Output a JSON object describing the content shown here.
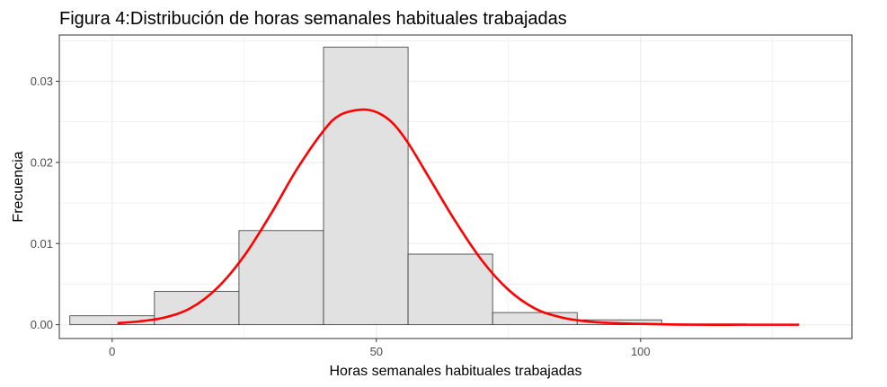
{
  "chart_data": {
    "type": "bar",
    "title": "Figura 4:Distribución de horas semanales habituales trabajadas",
    "xlabel": "Horas semanales habituales trabajadas",
    "ylabel": "Frecuencia",
    "xlim": [
      -10,
      140
    ],
    "ylim": [
      -0.0017,
      0.0357
    ],
    "x_ticks": [
      0,
      50,
      100
    ],
    "x_tick_labels": [
      "0",
      "50",
      "100"
    ],
    "y_ticks": [
      0,
      0.01,
      0.02,
      0.03
    ],
    "y_tick_labels": [
      "0.00",
      "0.01",
      "0.02",
      "0.03"
    ],
    "grid": true,
    "bins": [
      {
        "x0": -8,
        "x1": 8,
        "value": 0.0011
      },
      {
        "x0": 8,
        "x1": 24,
        "value": 0.0041
      },
      {
        "x0": 24,
        "x1": 40,
        "value": 0.0116
      },
      {
        "x0": 40,
        "x1": 56,
        "value": 0.0342
      },
      {
        "x0": 56,
        "x1": 72,
        "value": 0.0087
      },
      {
        "x0": 72,
        "x1": 88,
        "value": 0.0015
      },
      {
        "x0": 88,
        "x1": 104,
        "value": 0.0006
      },
      {
        "x0": 104,
        "x1": 120,
        "value": 0.0001
      },
      {
        "x0": 120,
        "x1": 137,
        "value": 0.0
      }
    ],
    "density_curve": {
      "color": "#ff0000",
      "x": [
        1,
        5,
        10,
        15,
        20,
        25,
        30,
        35,
        40,
        43,
        47,
        50,
        53,
        56,
        60,
        65,
        70,
        75,
        80,
        85,
        90,
        95,
        100,
        110,
        120,
        130
      ],
      "y": [
        0.0002,
        0.0004,
        0.0009,
        0.0021,
        0.0046,
        0.0085,
        0.0136,
        0.0192,
        0.0239,
        0.0258,
        0.0265,
        0.0262,
        0.0249,
        0.0224,
        0.0181,
        0.0127,
        0.0079,
        0.0043,
        0.002,
        0.0009,
        0.0004,
        0.0002,
        0.0001,
        0.0,
        0.0,
        0.0
      ]
    },
    "colors": {
      "bar_fill": "#e1e1e1",
      "bar_stroke": "#333333",
      "grid": "#ebebeb",
      "panel_border": "#333333"
    }
  }
}
